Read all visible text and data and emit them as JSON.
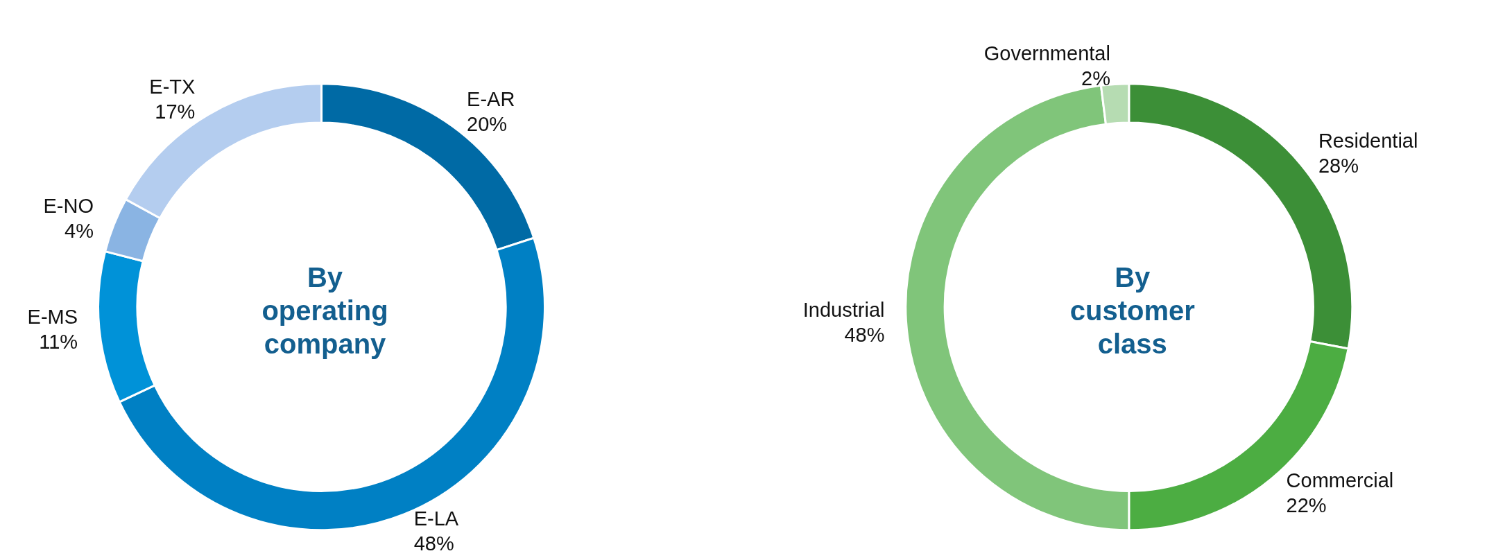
{
  "chart_data": [
    {
      "type": "donut",
      "title": "By operating company",
      "categories": [
        "E-AR",
        "E-LA",
        "E-MS",
        "E-NO",
        "E-TX"
      ],
      "values": [
        20,
        48,
        11,
        4,
        17
      ],
      "colors": [
        "#006aa5",
        "#0080c4",
        "#0092d8",
        "#8ab4e3",
        "#b4cdef"
      ],
      "value_labels": [
        "20%",
        "48%",
        "11%",
        "4%",
        "17%"
      ],
      "legend": false
    },
    {
      "type": "donut",
      "title": "By customer class",
      "categories": [
        "Residential",
        "Commercial",
        "Industrial",
        "Governmental"
      ],
      "values": [
        28,
        22,
        48,
        2
      ],
      "colors": [
        "#3c8f37",
        "#4cad42",
        "#80c57a",
        "#b6dcb2"
      ],
      "value_labels": [
        "28%",
        "22%",
        "48%",
        "2%"
      ],
      "legend": false
    }
  ]
}
